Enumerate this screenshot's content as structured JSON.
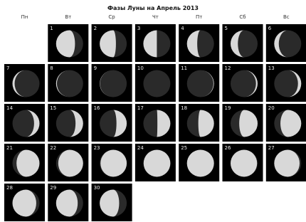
{
  "title": "Фазы Луны на Апрель 2013",
  "weekdays": [
    "Пн",
    "Вт",
    "Ср",
    "Чт",
    "Пт",
    "Сб",
    "Вс"
  ],
  "days": [
    1,
    2,
    3,
    4,
    5,
    6,
    7,
    8,
    9,
    10,
    11,
    12,
    13,
    14,
    15,
    16,
    17,
    18,
    19,
    20,
    21,
    22,
    23,
    24,
    25,
    26,
    27,
    28,
    29,
    30
  ]
}
